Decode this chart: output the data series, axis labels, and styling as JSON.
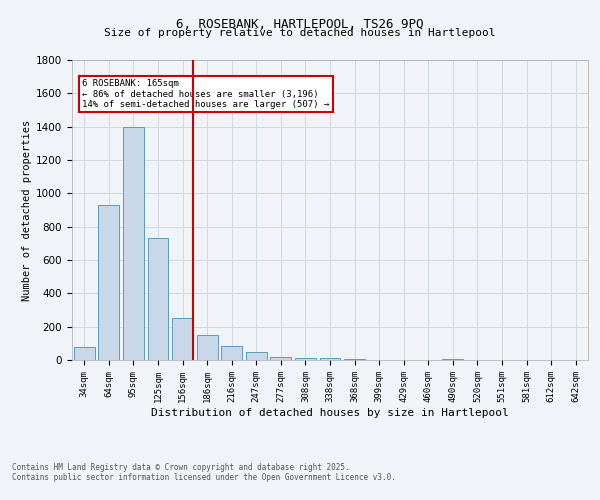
{
  "title_line1": "6, ROSEBANK, HARTLEPOOL, TS26 9PQ",
  "title_line2": "Size of property relative to detached houses in Hartlepool",
  "xlabel": "Distribution of detached houses by size in Hartlepool",
  "ylabel": "Number of detached properties",
  "footnote1": "Contains HM Land Registry data © Crown copyright and database right 2025.",
  "footnote2": "Contains public sector information licensed under the Open Government Licence v3.0.",
  "annotation_title": "6 ROSEBANK: 165sqm",
  "annotation_line2": "← 86% of detached houses are smaller (3,196)",
  "annotation_line3": "14% of semi-detached houses are larger (507) →",
  "categories": [
    "34sqm",
    "64sqm",
    "95sqm",
    "125sqm",
    "156sqm",
    "186sqm",
    "216sqm",
    "247sqm",
    "277sqm",
    "308sqm",
    "338sqm",
    "368sqm",
    "399sqm",
    "429sqm",
    "460sqm",
    "490sqm",
    "520sqm",
    "551sqm",
    "581sqm",
    "612sqm",
    "642sqm"
  ],
  "values": [
    80,
    930,
    1400,
    730,
    250,
    150,
    85,
    50,
    20,
    15,
    10,
    5,
    3,
    0,
    0,
    5,
    0,
    0,
    0,
    0,
    0
  ],
  "highlight_index": 4,
  "bar_color": "#c8d8e8",
  "bar_edgecolor": "#5a9abf",
  "vline_color": "#cc0000",
  "vline_x": 4,
  "annotation_box_edgecolor": "#cc0000",
  "annotation_box_facecolor": "#ffffff",
  "ylim": [
    0,
    1800
  ],
  "yticks": [
    0,
    200,
    400,
    600,
    800,
    1000,
    1200,
    1400,
    1600,
    1800
  ],
  "grid_color": "#d0d8e0",
  "background_color": "#f0f4f8",
  "axes_background": "#f0f4f8",
  "title_fontsize": 9,
  "subtitle_fontsize": 8,
  "bar_width": 0.85
}
